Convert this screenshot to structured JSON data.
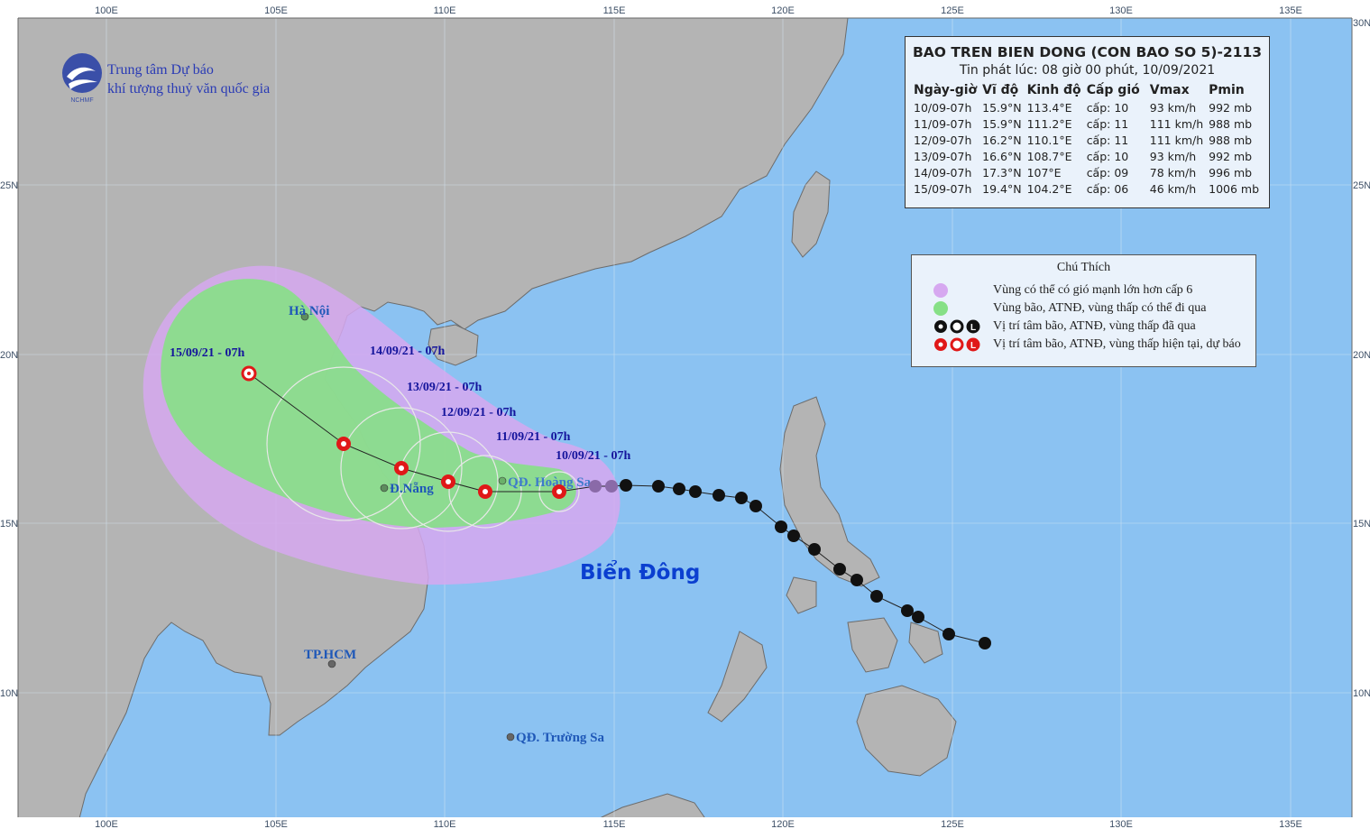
{
  "header": {
    "title": "BAO TREN BIEN DONG (CON BAO SO 5)-2113",
    "issued": "Tin phát lúc: 08 giờ 00 phút, 10/09/2021",
    "columns": [
      "Ngày-giờ",
      "Vĩ độ",
      "Kinh độ",
      "Cấp gió",
      "Vmax",
      "Pmin"
    ],
    "rows": [
      {
        "time": "10/09-07h",
        "lat": "15.9°N",
        "lon": "113.4°E",
        "level": "cấp: 10",
        "vmax": "93 km/h",
        "pmin": "992 mb"
      },
      {
        "time": "11/09-07h",
        "lat": "15.9°N",
        "lon": "111.2°E",
        "level": "cấp: 11",
        "vmax": "111 km/h",
        "pmin": "988 mb"
      },
      {
        "time": "12/09-07h",
        "lat": "16.2°N",
        "lon": "110.1°E",
        "level": "cấp: 11",
        "vmax": "111 km/h",
        "pmin": "988 mb"
      },
      {
        "time": "13/09-07h",
        "lat": "16.6°N",
        "lon": "108.7°E",
        "level": "cấp: 10",
        "vmax": "93 km/h",
        "pmin": "992 mb"
      },
      {
        "time": "14/09-07h",
        "lat": "17.3°N",
        "lon": "107°E",
        "level": "cấp: 09",
        "vmax": "78 km/h",
        "pmin": "996 mb"
      },
      {
        "time": "15/09-07h",
        "lat": "19.4°N",
        "lon": "104.2°E",
        "level": "cấp: 06",
        "vmax": "46 km/h",
        "pmin": "1006 mb"
      }
    ]
  },
  "legend": {
    "title": "Chú Thích",
    "items": [
      {
        "text": "Vùng có thể có gió mạnh lớn hơn cấp 6",
        "color": "#d6a8f0"
      },
      {
        "text": "Vùng bão, ATNĐ, vùng thấp có thể đi qua",
        "color": "#86e086"
      },
      {
        "text": "Vị trí tâm bão, ATNĐ, vùng thấp đã qua",
        "color": "#111111"
      },
      {
        "text": "Vị trí tâm bão, ATNĐ, vùng thấp hiện tại, dự báo",
        "color": "#e01818"
      }
    ],
    "symbols": [
      "Ƨ",
      "O",
      "L"
    ]
  },
  "organization": {
    "line1": "Trung tâm Dự báo",
    "line2": "khí tượng thuỷ văn quốc gia",
    "logo_text": "NCHMF"
  },
  "axes": {
    "lon_ticks": [
      "100E",
      "105E",
      "110E",
      "115E",
      "120E",
      "125E",
      "130E",
      "135E"
    ],
    "lat_ticks": [
      "30N",
      "25N",
      "20N",
      "15N",
      "10N"
    ]
  },
  "places": {
    "hanoi": "Hà Nội",
    "danang": "Đ.Nẵng",
    "hcm": "TP.HCM",
    "paracel": "QĐ. Hoàng Sa",
    "spratly": "QĐ. Trường Sa",
    "sea": "Biển Đông"
  },
  "forecast_labels": [
    "10/09/21 - 07h",
    "11/09/21 - 07h",
    "12/09/21 - 07h",
    "13/09/21 - 07h",
    "14/09/21 - 07h",
    "15/09/21 - 07h"
  ],
  "colors": {
    "sea": "#8bc2f2",
    "land": "#b4b4b4",
    "strong_wind_zone": "#d6a8f0",
    "storm_zone": "#86e086",
    "forecast_symbol": "#e01818",
    "past_symbol": "#111111"
  }
}
